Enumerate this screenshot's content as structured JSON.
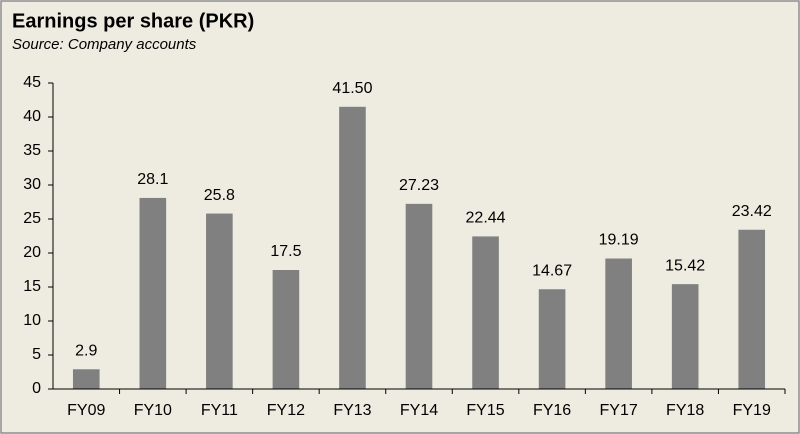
{
  "chart_data": {
    "type": "bar",
    "title": "Earnings per share (PKR)",
    "subtitle": "Source: Company accounts",
    "categories": [
      "FY09",
      "FY10",
      "FY11",
      "FY12",
      "FY13",
      "FY14",
      "FY15",
      "FY16",
      "FY17",
      "FY18",
      "FY19"
    ],
    "values": [
      2.9,
      28.1,
      25.8,
      17.5,
      41.5,
      27.23,
      22.44,
      14.67,
      19.19,
      15.42,
      23.42
    ],
    "value_labels": [
      "2.9",
      "28.1",
      "25.8",
      "17.5",
      "41.50",
      "27.23",
      "22.44",
      "14.67",
      "19.19",
      "15.42",
      "23.42"
    ],
    "color": "#808080",
    "ylim": [
      0,
      45
    ],
    "yticks": [
      0,
      5,
      10,
      15,
      20,
      25,
      30,
      35,
      40,
      45
    ],
    "grid": false
  }
}
